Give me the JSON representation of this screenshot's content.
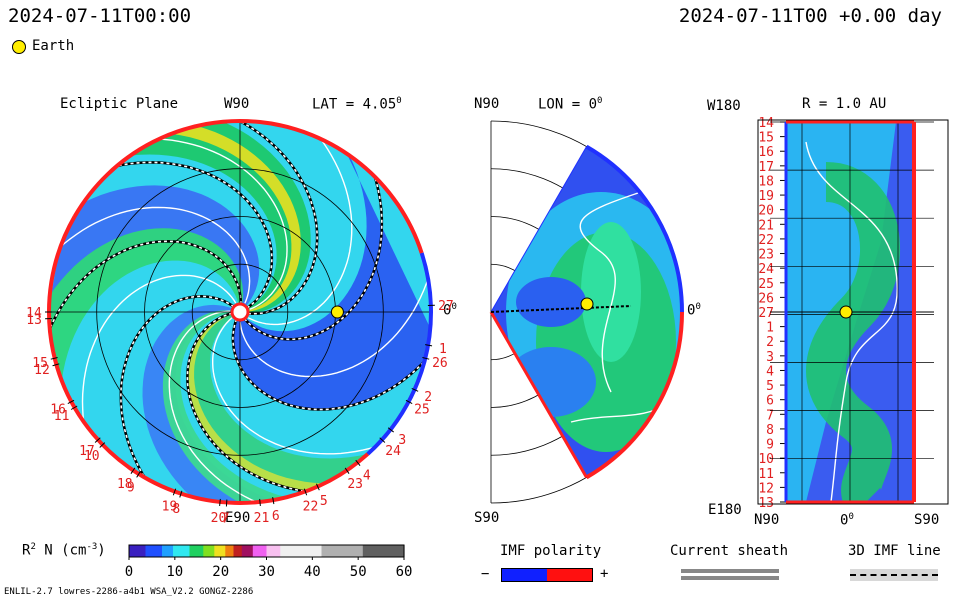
{
  "header": {
    "time_left": "2024-07-11T00:00",
    "time_right": "2024-07-11T00 +0.00 day",
    "legend_label": "Earth"
  },
  "colors": {
    "earth": "#ffee00",
    "ring_red": "#ff2020",
    "ring_blue": "#2030ff",
    "label_red": "#e02020"
  },
  "chart_data": [
    {
      "type": "heatmap",
      "panel": "ecliptic",
      "title": "Ecliptic Plane",
      "top_label": "W90",
      "lat_label": "LAT = 4.05",
      "lat_degree_mark": "0",
      "bottom_label": "E90",
      "right_label": "0",
      "right_degree_mark": "0",
      "carrington_labels": [
        "1",
        "2",
        "3",
        "4",
        "5",
        "6",
        "7",
        "8",
        "9",
        "10",
        "11",
        "12",
        "13",
        "14",
        "15",
        "16",
        "17",
        "18",
        "19",
        "20",
        "21",
        "22",
        "23",
        "24",
        "25",
        "26",
        "27"
      ],
      "carrington_angles_deg": [
        -10,
        -24,
        -38,
        -52,
        -66,
        -80,
        -94,
        -108,
        -122,
        -136,
        -150,
        -164,
        -178,
        -180,
        -166,
        -152,
        -138,
        -124,
        -110,
        -96,
        -84,
        -70,
        -56,
        -42,
        -28,
        -14,
        2
      ],
      "radius_rings_au": [
        0.25,
        0.5,
        0.75,
        1.0
      ],
      "earth": {
        "r_au": 1.0,
        "lon_deg": 0
      },
      "polarity_boundary_lon_deg": [
        -168,
        -48,
        18,
        150
      ]
    },
    {
      "type": "heatmap",
      "panel": "meridional",
      "top_left_label": "N90",
      "lon_label": "LON = 0",
      "lon_degree_mark": "0",
      "bottom_label": "S90",
      "right_label": "0",
      "right_degree_mark": "0",
      "lat_range_deg": [
        -60,
        60
      ],
      "earth": {
        "r_au": 1.0,
        "lat_deg": 0
      }
    },
    {
      "type": "heatmap",
      "panel": "sphere_1au",
      "title": "R = 1.0 AU",
      "top_left_label": "W180",
      "bottom_left_label": "E180",
      "bottom_labels": [
        "N90",
        "0",
        "S90"
      ],
      "bottom_degree_mark": "0",
      "row_labels": [
        "14",
        "15",
        "16",
        "17",
        "18",
        "19",
        "20",
        "21",
        "22",
        "23",
        "24",
        "25",
        "26",
        "27",
        "1",
        "2",
        "3",
        "4",
        "5",
        "6",
        "7",
        "8",
        "9",
        "10",
        "11",
        "12",
        "13"
      ],
      "earth": {
        "row_label": "27",
        "lat_deg": 0
      }
    }
  ],
  "colorbar": {
    "label": "R",
    "label_sup": "2",
    "label_unit": "N (cm",
    "label_unit_sup": "-3",
    "label_close": ")",
    "ticks": [
      0,
      10,
      20,
      30,
      40,
      50,
      60
    ],
    "range": [
      0,
      60
    ]
  },
  "imf_legend": {
    "title": "IMF polarity",
    "minus": "−",
    "plus": "+"
  },
  "sheath_legend": {
    "title": "Current sheath"
  },
  "line_legend": {
    "title": "3D IMF line"
  },
  "footer": {
    "model_info": "ENLIL-2.7 lowres-2286-a4b1 WSA_V2.2 GONGZ-2286"
  }
}
